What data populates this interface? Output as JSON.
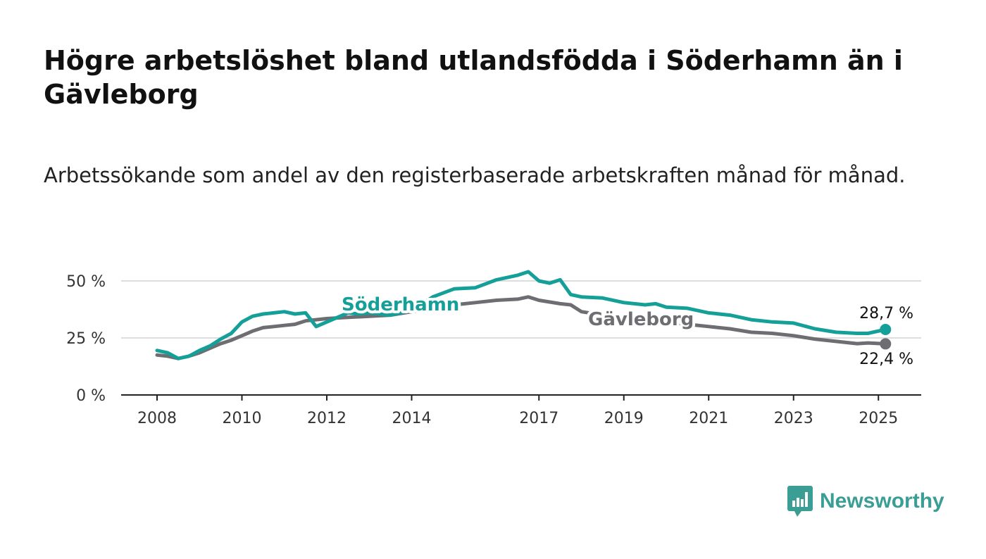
{
  "title": "Högre arbetslöshet bland utlandsfödda i Söderhamn än i Gävleborg",
  "subtitle": "Arbetssökande som andel av den registerbaserade arbetskraften månad för månad.",
  "brand": {
    "name": "Newsworthy"
  },
  "colors": {
    "soderhamn": "#14a098",
    "gavleborg": "#6d6d72",
    "grid": "#dddddd",
    "brand": "#3a9e95"
  },
  "chart_data": {
    "type": "line",
    "title": "Högre arbetslöshet bland utlandsfödda i Söderhamn än i Gävleborg",
    "subtitle": "Arbetssökande som andel av den registerbaserade arbetskraften månad för månad.",
    "xlabel": "",
    "ylabel": "",
    "x_ticks": [
      "2008",
      "2010",
      "2012",
      "2014",
      "2017",
      "2019",
      "2021",
      "2023",
      "2025"
    ],
    "y_ticks": [
      "0 %",
      "25 %",
      "50 %"
    ],
    "ylim": [
      0,
      55
    ],
    "grid": "horizontal",
    "legend": "direct labels on lines",
    "series": [
      {
        "name": "Söderhamn",
        "end_label": "28,7 %",
        "points": [
          [
            "2008-01",
            19.5
          ],
          [
            "2008-04",
            18.5
          ],
          [
            "2008-07",
            16.0
          ],
          [
            "2008-10",
            17.0
          ],
          [
            "2009-01",
            19.5
          ],
          [
            "2009-04",
            21.5
          ],
          [
            "2009-07",
            24.5
          ],
          [
            "2009-10",
            27.0
          ],
          [
            "2010-01",
            32.0
          ],
          [
            "2010-04",
            34.5
          ],
          [
            "2010-07",
            35.5
          ],
          [
            "2010-10",
            36.0
          ],
          [
            "2011-01",
            36.5
          ],
          [
            "2011-04",
            35.5
          ],
          [
            "2011-07",
            36.0
          ],
          [
            "2011-10",
            30.0
          ],
          [
            "2012-01",
            32.0
          ],
          [
            "2012-04",
            34.0
          ],
          [
            "2012-07",
            36.0
          ],
          [
            "2012-10",
            35.5
          ],
          [
            "2013-01",
            36.0
          ],
          [
            "2013-07",
            35.0
          ],
          [
            "2014-01",
            37.0
          ],
          [
            "2014-07",
            43.0
          ],
          [
            "2015-01",
            46.5
          ],
          [
            "2015-07",
            47.0
          ],
          [
            "2016-01",
            50.5
          ],
          [
            "2016-07",
            52.5
          ],
          [
            "2016-10",
            54.0
          ],
          [
            "2017-01",
            50.0
          ],
          [
            "2017-04",
            49.0
          ],
          [
            "2017-07",
            50.5
          ],
          [
            "2017-10",
            44.0
          ],
          [
            "2018-01",
            43.0
          ],
          [
            "2018-07",
            42.5
          ],
          [
            "2019-01",
            40.5
          ],
          [
            "2019-07",
            39.5
          ],
          [
            "2019-10",
            40.0
          ],
          [
            "2020-01",
            38.5
          ],
          [
            "2020-07",
            38.0
          ],
          [
            "2021-01",
            36.0
          ],
          [
            "2021-07",
            35.0
          ],
          [
            "2022-01",
            33.0
          ],
          [
            "2022-07",
            32.0
          ],
          [
            "2023-01",
            31.5
          ],
          [
            "2023-07",
            29.0
          ],
          [
            "2024-01",
            27.5
          ],
          [
            "2024-07",
            27.0
          ],
          [
            "2024-10",
            27.0
          ],
          [
            "2025-03",
            28.7
          ]
        ]
      },
      {
        "name": "Gävleborg",
        "end_label": "22,4 %",
        "points": [
          [
            "2008-01",
            17.5
          ],
          [
            "2008-04",
            17.0
          ],
          [
            "2008-07",
            16.0
          ],
          [
            "2008-10",
            17.0
          ],
          [
            "2009-01",
            18.5
          ],
          [
            "2009-04",
            20.5
          ],
          [
            "2009-07",
            22.5
          ],
          [
            "2009-10",
            24.0
          ],
          [
            "2010-01",
            26.0
          ],
          [
            "2010-04",
            28.0
          ],
          [
            "2010-07",
            29.5
          ],
          [
            "2010-10",
            30.0
          ],
          [
            "2011-01",
            30.5
          ],
          [
            "2011-04",
            31.0
          ],
          [
            "2011-07",
            32.5
          ],
          [
            "2011-10",
            33.0
          ],
          [
            "2012-01",
            33.5
          ],
          [
            "2012-07",
            34.0
          ],
          [
            "2013-01",
            34.5
          ],
          [
            "2013-07",
            35.0
          ],
          [
            "2014-01",
            36.5
          ],
          [
            "2014-07",
            38.0
          ],
          [
            "2015-01",
            39.5
          ],
          [
            "2015-07",
            40.5
          ],
          [
            "2016-01",
            41.5
          ],
          [
            "2016-07",
            42.0
          ],
          [
            "2016-10",
            43.0
          ],
          [
            "2017-01",
            41.5
          ],
          [
            "2017-07",
            40.0
          ],
          [
            "2017-10",
            39.5
          ],
          [
            "2018-01",
            36.5
          ],
          [
            "2018-07",
            35.0
          ],
          [
            "2019-01",
            34.0
          ],
          [
            "2019-07",
            33.0
          ],
          [
            "2020-01",
            32.0
          ],
          [
            "2020-07",
            31.0
          ],
          [
            "2021-01",
            30.0
          ],
          [
            "2021-07",
            29.0
          ],
          [
            "2022-01",
            27.5
          ],
          [
            "2022-07",
            27.0
          ],
          [
            "2023-01",
            26.0
          ],
          [
            "2023-07",
            24.5
          ],
          [
            "2024-01",
            23.5
          ],
          [
            "2024-07",
            22.5
          ],
          [
            "2024-10",
            22.8
          ],
          [
            "2025-03",
            22.4
          ]
        ]
      }
    ]
  }
}
